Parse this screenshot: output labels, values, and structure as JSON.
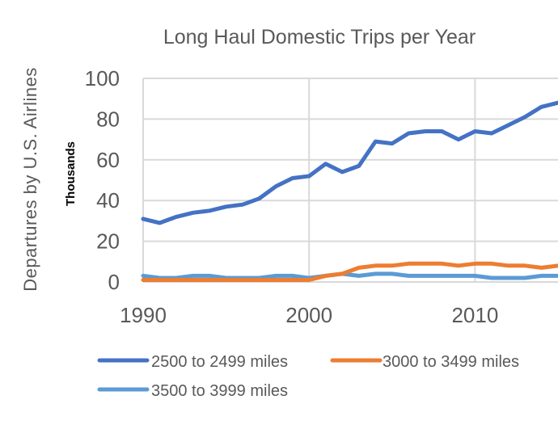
{
  "chart_data": {
    "type": "line",
    "title": "Long Haul Domestic Trips per Year",
    "ylabel": "Departures  by U.S. Airlines",
    "ylabel_units": "Thousands",
    "xlabel": "",
    "xlim": [
      1990,
      2015
    ],
    "ylim": [
      0,
      100
    ],
    "x_ticks": [
      1990,
      2000,
      2010
    ],
    "y_ticks": [
      0,
      20,
      40,
      60,
      80,
      100
    ],
    "grid": true,
    "legend_position": "bottom",
    "x": [
      1990,
      1991,
      1992,
      1993,
      1994,
      1995,
      1996,
      1997,
      1998,
      1999,
      2000,
      2001,
      2002,
      2003,
      2004,
      2005,
      2006,
      2007,
      2008,
      2009,
      2010,
      2011,
      2012,
      2013,
      2014,
      2015
    ],
    "series": [
      {
        "name": "2500 to 2499 miles",
        "color": "#4472C4",
        "values": [
          31,
          29,
          32,
          34,
          35,
          37,
          38,
          41,
          47,
          51,
          52,
          58,
          54,
          57,
          69,
          68,
          73,
          74,
          74,
          70,
          74,
          73,
          77,
          81,
          86,
          88
        ]
      },
      {
        "name": "3000 to 3499 miles",
        "color": "#ED7D31",
        "values": [
          1,
          1,
          1,
          1,
          1,
          1,
          1,
          1,
          1,
          1,
          1,
          3,
          4,
          7,
          8,
          8,
          9,
          9,
          9,
          8,
          9,
          9,
          8,
          8,
          7,
          8
        ]
      },
      {
        "name": "3500 to 3999 miles",
        "color": "#5B9BD5",
        "values": [
          3,
          2,
          2,
          3,
          3,
          2,
          2,
          2,
          3,
          3,
          2,
          3,
          4,
          3,
          4,
          4,
          3,
          3,
          3,
          3,
          3,
          2,
          2,
          2,
          3,
          3
        ]
      }
    ]
  }
}
